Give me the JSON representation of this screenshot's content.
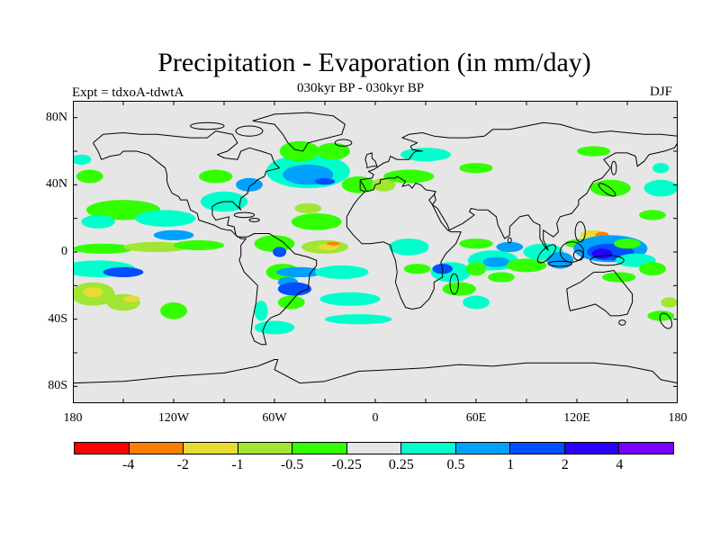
{
  "title": "Precipitation - Evaporation (in mm/day)",
  "subtitle": "030kyr BP - 030kyr BP",
  "experiment": "Expt = tdxoA-tdwtA",
  "season": "DJF",
  "map": {
    "projection": "cylindrical-equidistant",
    "lon_range": [
      -180,
      180
    ],
    "lat_range": [
      -90,
      90
    ],
    "background_color": "#e6e6e6",
    "coastline_color": "#000000",
    "y_ticks": [
      {
        "lat": 80,
        "label": "80N"
      },
      {
        "lat": 40,
        "label": "40N"
      },
      {
        "lat": 0,
        "label": "0"
      },
      {
        "lat": -40,
        "label": "40S"
      },
      {
        "lat": -80,
        "label": "80S"
      }
    ],
    "x_ticks": [
      {
        "lon": -180,
        "label": "180"
      },
      {
        "lon": -120,
        "label": "120W"
      },
      {
        "lon": -60,
        "label": "60W"
      },
      {
        "lon": 0,
        "label": "0"
      },
      {
        "lon": 60,
        "label": "60E"
      },
      {
        "lon": 120,
        "label": "120E"
      },
      {
        "lon": 180,
        "label": "180"
      }
    ]
  },
  "colorbar": {
    "colors": [
      "#ff0000",
      "#ff8000",
      "#e6dc32",
      "#a0e632",
      "#32ff00",
      "#e6e6e6",
      "#00ffcc",
      "#00a0ff",
      "#0050ff",
      "#2800ff",
      "#7800ff"
    ],
    "tick_labels": [
      "-4",
      "-2",
      "-1",
      "-0.5",
      "-0.25",
      "0.25",
      "0.5",
      "1",
      "2",
      "4"
    ]
  },
  "field_regions": [
    {
      "lon": -165,
      "lat": -10,
      "rx": 22,
      "ry": 5,
      "level": 1
    },
    {
      "lon": -150,
      "lat": -12,
      "rx": 12,
      "ry": 3,
      "level": 3
    },
    {
      "lon": -168,
      "lat": -25,
      "rx": 13,
      "ry": 7,
      "level": -2
    },
    {
      "lon": -168,
      "lat": -24,
      "rx": 6,
      "ry": 3,
      "level": -3
    },
    {
      "lon": -150,
      "lat": -30,
      "rx": 10,
      "ry": 5,
      "level": -2
    },
    {
      "lon": -145,
      "lat": -28,
      "rx": 5,
      "ry": 2,
      "level": -3
    },
    {
      "lon": -120,
      "lat": -35,
      "rx": 8,
      "ry": 5,
      "level": -1
    },
    {
      "lon": -162,
      "lat": 2,
      "rx": 18,
      "ry": 3,
      "level": -1
    },
    {
      "lon": -130,
      "lat": 3,
      "rx": 20,
      "ry": 3,
      "level": -2
    },
    {
      "lon": -105,
      "lat": 4,
      "rx": 15,
      "ry": 3,
      "level": -1
    },
    {
      "lon": -150,
      "lat": 25,
      "rx": 22,
      "ry": 6,
      "level": -1
    },
    {
      "lon": -165,
      "lat": 18,
      "rx": 10,
      "ry": 4,
      "level": 1
    },
    {
      "lon": -125,
      "lat": 20,
      "rx": 18,
      "ry": 5,
      "level": 1
    },
    {
      "lon": -120,
      "lat": 10,
      "rx": 12,
      "ry": 3,
      "level": 2
    },
    {
      "lon": -170,
      "lat": 45,
      "rx": 8,
      "ry": 4,
      "level": -1
    },
    {
      "lon": -175,
      "lat": 55,
      "rx": 6,
      "ry": 3,
      "level": 1
    },
    {
      "lon": -90,
      "lat": 30,
      "rx": 14,
      "ry": 6,
      "level": 1
    },
    {
      "lon": -75,
      "lat": 40,
      "rx": 8,
      "ry": 4,
      "level": 2
    },
    {
      "lon": -95,
      "lat": 45,
      "rx": 10,
      "ry": 4,
      "level": -1
    },
    {
      "lon": -60,
      "lat": 5,
      "rx": 12,
      "ry": 5,
      "level": -1
    },
    {
      "lon": -57,
      "lat": 0,
      "rx": 4,
      "ry": 3,
      "level": 3
    },
    {
      "lon": -55,
      "lat": -12,
      "rx": 10,
      "ry": 5,
      "level": -1
    },
    {
      "lon": -52,
      "lat": -18,
      "rx": 6,
      "ry": 3,
      "level": 2
    },
    {
      "lon": -45,
      "lat": -12,
      "rx": 14,
      "ry": 3,
      "level": 2
    },
    {
      "lon": -48,
      "lat": -22,
      "rx": 10,
      "ry": 4,
      "level": 3
    },
    {
      "lon": -50,
      "lat": -30,
      "rx": 8,
      "ry": 4,
      "level": -1
    },
    {
      "lon": -68,
      "lat": -35,
      "rx": 4,
      "ry": 6,
      "level": 1
    },
    {
      "lon": -60,
      "lat": -45,
      "rx": 12,
      "ry": 4,
      "level": 1
    },
    {
      "lon": -30,
      "lat": 3,
      "rx": 14,
      "ry": 4,
      "level": -2
    },
    {
      "lon": -28,
      "lat": 3,
      "rx": 6,
      "ry": 2,
      "level": -3
    },
    {
      "lon": -25,
      "lat": 5,
      "rx": 4,
      "ry": 1,
      "level": -4
    },
    {
      "lon": -20,
      "lat": -12,
      "rx": 16,
      "ry": 4,
      "level": 1
    },
    {
      "lon": -15,
      "lat": -28,
      "rx": 18,
      "ry": 4,
      "level": 1
    },
    {
      "lon": -10,
      "lat": -40,
      "rx": 20,
      "ry": 3,
      "level": 1
    },
    {
      "lon": -35,
      "lat": 18,
      "rx": 15,
      "ry": 5,
      "level": -1
    },
    {
      "lon": -40,
      "lat": 26,
      "rx": 8,
      "ry": 3,
      "level": -2
    },
    {
      "lon": -40,
      "lat": 48,
      "rx": 25,
      "ry": 10,
      "level": 1
    },
    {
      "lon": -40,
      "lat": 46,
      "rx": 15,
      "ry": 6,
      "level": 2
    },
    {
      "lon": -30,
      "lat": 42,
      "rx": 6,
      "ry": 2,
      "level": 3
    },
    {
      "lon": -45,
      "lat": 60,
      "rx": 12,
      "ry": 6,
      "level": -1
    },
    {
      "lon": -25,
      "lat": 60,
      "rx": 10,
      "ry": 5,
      "level": -1
    },
    {
      "lon": -10,
      "lat": 40,
      "rx": 10,
      "ry": 5,
      "level": -1
    },
    {
      "lon": 5,
      "lat": 40,
      "rx": 7,
      "ry": 4,
      "level": -2
    },
    {
      "lon": 20,
      "lat": 45,
      "rx": 15,
      "ry": 4,
      "level": -1
    },
    {
      "lon": 30,
      "lat": 58,
      "rx": 15,
      "ry": 4,
      "level": 1
    },
    {
      "lon": 60,
      "lat": 50,
      "rx": 10,
      "ry": 3,
      "level": -1
    },
    {
      "lon": 20,
      "lat": 3,
      "rx": 12,
      "ry": 5,
      "level": 1
    },
    {
      "lon": 25,
      "lat": -10,
      "rx": 8,
      "ry": 3,
      "level": -1
    },
    {
      "lon": 45,
      "lat": -12,
      "rx": 12,
      "ry": 6,
      "level": 1
    },
    {
      "lon": 40,
      "lat": -10,
      "rx": 6,
      "ry": 3,
      "level": 3
    },
    {
      "lon": 50,
      "lat": -22,
      "rx": 10,
      "ry": 4,
      "level": -1
    },
    {
      "lon": 60,
      "lat": -30,
      "rx": 8,
      "ry": 4,
      "level": 1
    },
    {
      "lon": 70,
      "lat": -5,
      "rx": 15,
      "ry": 6,
      "level": 1
    },
    {
      "lon": 72,
      "lat": -6,
      "rx": 8,
      "ry": 3,
      "level": 2
    },
    {
      "lon": 60,
      "lat": -10,
      "rx": 6,
      "ry": 4,
      "level": -1
    },
    {
      "lon": 75,
      "lat": -15,
      "rx": 8,
      "ry": 3,
      "level": -1
    },
    {
      "lon": 60,
      "lat": 5,
      "rx": 10,
      "ry": 3,
      "level": -1
    },
    {
      "lon": 80,
      "lat": 3,
      "rx": 8,
      "ry": 3,
      "level": 2
    },
    {
      "lon": 90,
      "lat": -8,
      "rx": 12,
      "ry": 4,
      "level": -1
    },
    {
      "lon": 100,
      "lat": 0,
      "rx": 12,
      "ry": 5,
      "level": 1
    },
    {
      "lon": 110,
      "lat": -5,
      "rx": 8,
      "ry": 5,
      "level": 2
    },
    {
      "lon": 125,
      "lat": 5,
      "rx": 12,
      "ry": 3,
      "level": -1
    },
    {
      "lon": 130,
      "lat": 10,
      "rx": 8,
      "ry": 3,
      "level": -3
    },
    {
      "lon": 135,
      "lat": 10,
      "rx": 4,
      "ry": 2,
      "level": -4
    },
    {
      "lon": 140,
      "lat": 2,
      "rx": 22,
      "ry": 8,
      "level": 2
    },
    {
      "lon": 140,
      "lat": 0,
      "rx": 14,
      "ry": 5,
      "level": 3
    },
    {
      "lon": 135,
      "lat": -1,
      "rx": 6,
      "ry": 3,
      "level": 4
    },
    {
      "lon": 155,
      "lat": -5,
      "rx": 12,
      "ry": 4,
      "level": 1
    },
    {
      "lon": 165,
      "lat": -10,
      "rx": 8,
      "ry": 4,
      "level": -1
    },
    {
      "lon": 145,
      "lat": -15,
      "rx": 10,
      "ry": 3,
      "level": -1
    },
    {
      "lon": 150,
      "lat": 5,
      "rx": 8,
      "ry": 3,
      "level": -1
    },
    {
      "lon": 140,
      "lat": 38,
      "rx": 12,
      "ry": 5,
      "level": -1
    },
    {
      "lon": 170,
      "lat": 38,
      "rx": 10,
      "ry": 5,
      "level": 1
    },
    {
      "lon": 165,
      "lat": 22,
      "rx": 8,
      "ry": 3,
      "level": -1
    },
    {
      "lon": 170,
      "lat": 50,
      "rx": 5,
      "ry": 3,
      "level": 1
    },
    {
      "lon": 130,
      "lat": 60,
      "rx": 10,
      "ry": 3,
      "level": -1
    },
    {
      "lon": 170,
      "lat": -38,
      "rx": 8,
      "ry": 3,
      "level": -1
    },
    {
      "lon": 175,
      "lat": -30,
      "rx": 5,
      "ry": 3,
      "level": -2
    }
  ],
  "coastlines": [
    "-168,65 -162,70 -150,71 -140,70 -130,70 -120,69 -110,68 -100,68 -95,72 -85,70 -82,65 -88,60 -94,58 -90,56 -82,55 -80,60 -75,62 -68,60 -62,58 -60,53 -57,50 -65,48 -66,45 -70,43 -72,41 -75,39 -76,35 -80,32 -81,27 -80,25 -82,27 -85,30 -90,30 -94,29 -97,27 -97,22 -95,19 -91,20 -87,21 -88,16 -84,15 -83,10 -80,8 -77,8 -80,4 -80,-2 -81,-5 -78,-12 -73,-17 -70,-20 -71,-30 -73,-40 -74,-48 -72,-53 -68,-55 -65,-55 -67,-47 -65,-42 -62,-39 -57,-37 -54,-34 -48,-27 -45,-24 -40,-22 -39,-13 -35,-8 -35,-5 -40,-3 -48,-1 -51,2 -55,6 -60,9 -63,11 -72,11 -76,9 -79,9 -82,9 -86,13 -88,13 -92,14 -96,16 -105,19 -106,23 -110,25 -112,31 -116,31 -117,33 -121,35 -123,39 -124,42 -124,46 -125,50 -130,54 -135,58 -142,60 -150,60 -152,58 -158,57 -163,55 -165,60 -168,65",
    "-73,78 -60,82 -40,83 -25,81 -18,76 -20,70 -28,68 -40,65 -43,60 -48,61 -52,65 -55,70 -60,76 -73,78",
    "-9,43 -9,37 -6,36 -10,32 -13,28 -17,21 -17,15 -13,10 -8,5 -3,5 5,6 9,4 10,0 12,-5 13,-12 12,-18 15,-27 18,-33 22,-34 27,-33 32,-28 35,-22 35,-18 40,-15 40,-10 39,-6 42,-1 48,5 51,12 45,12 43,13 39,18 34,28 32,31 35,34 36,36 30,37 27,40 24,41 22,38 20,40 16,39 18,42 13,45 12,44 10,44 8,44 3,43 3,41 0,40 -1,37 -5,36 -9,43",
    "-9,43 -2,44 -1,46 -4,48 -1,49 2,51 5,53 8,54 9,57 11,56 13,55 20,55 22,58 24,60 28,60 22,61 21,63 25,65 22,66 16,68 20,70 28,71 35,69 44,68 55,68 65,69 70,73 80,73 90,75 100,77 110,76 120,73 130,71 140,72 150,71 160,70 170,70 180,69",
    "-5,50 -2,51 1,51 0,54 -2,56 -2,59 -5,58 -6,55 -5,52 -5,50",
    "180,65 178,62 172,60 163,58 160,54 156,51 155,57 150,59 143,59 136,55 140,50 135,44 130,42 128,39 126,35 121,31 121,28 117,23 110,21 108,17 109,12 106,9 103,11 100,13 100,7 103,1 101,3 98,8 98,16 94,18 91,22 86,21 80,15 80,10 77,8 73,16 72,21 67,25 61,25 57,26 56,24 59,22 52,17 44,13 43,16 37,26 34,28 36,31 35,35"
  ],
  "islands": [
    {
      "lon": 117,
      "lat": 0,
      "rx": 7,
      "ry": 6
    },
    {
      "lon": 102,
      "lat": -1,
      "rx": 7,
      "ry": 3,
      "rot": -45
    },
    {
      "lon": 110,
      "lat": -7,
      "rx": 7,
      "ry": 1.5
    },
    {
      "lon": 138,
      "lat": -5,
      "rx": 10,
      "ry": 3
    },
    {
      "lon": 121,
      "lat": -2,
      "rx": 3,
      "ry": 3
    },
    {
      "lon": 122,
      "lat": 12,
      "rx": 3,
      "ry": 6
    },
    {
      "lon": 138,
      "lat": 37,
      "rx": 6,
      "ry": 2,
      "rot": 35
    },
    {
      "lon": 47,
      "lat": -19,
      "rx": 2.5,
      "ry": 6
    },
    {
      "lon": 80,
      "lat": 7,
      "rx": 1,
      "ry": 1.5
    },
    {
      "lon": 173,
      "lat": -41,
      "rx": 3,
      "ry": 5,
      "rot": -30
    },
    {
      "lon": 147,
      "lat": -42,
      "rx": 2,
      "ry": 1.5
    },
    {
      "lon": -78,
      "lat": 22,
      "rx": 6,
      "ry": 1.5
    },
    {
      "lon": -72,
      "lat": 19,
      "rx": 3,
      "ry": 1
    },
    {
      "lon": -19,
      "lat": 65,
      "rx": 5,
      "ry": 2
    },
    {
      "lon": -100,
      "lat": 75,
      "rx": 10,
      "ry": 2
    },
    {
      "lon": -75,
      "lat": 72,
      "rx": 8,
      "ry": 3
    },
    {
      "lon": 142,
      "lat": 50,
      "rx": 1.5,
      "ry": 4
    }
  ],
  "australia": "114,-22 122,-18 130,-12 136,-12 142,-11 145,-15 153,-25 153,-30 150,-37 145,-38 140,-38 137,-35 131,-31 124,-33 116,-35 115,-31 114,-22",
  "antarctica": "-180,-78 -150,-77 -120,-74 -90,-72 -70,-68 -60,-64 -58,-64 -60,-70 -45,-78 -30,-77 -10,-71 10,-70 30,-69 50,-67 70,-68 90,-66 110,-66 130,-66 150,-68 165,-71 170,-76 180,-78"
}
